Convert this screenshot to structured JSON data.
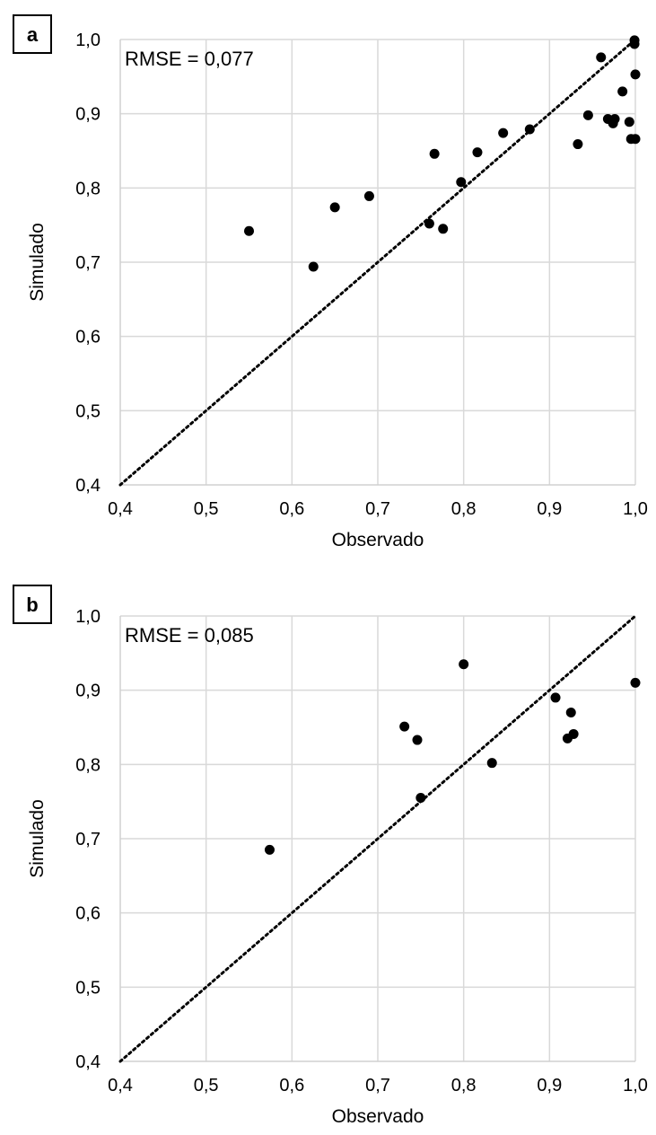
{
  "chart_data": [
    {
      "type": "scatter",
      "panel_label": "a",
      "annotation": "RMSE = 0,077",
      "xlabel": "Observado",
      "ylabel": "Simulado",
      "xlim": [
        0.4,
        1.0
      ],
      "ylim": [
        0.4,
        1.0
      ],
      "x_ticks": [
        "0,4",
        "0,5",
        "0,6",
        "0,7",
        "0,8",
        "0,9",
        "1,0"
      ],
      "y_ticks": [
        "0,4",
        "0,5",
        "0,6",
        "0,7",
        "0,8",
        "0,9",
        "1,0"
      ],
      "grid": true,
      "reference_line": "1:1",
      "points": [
        {
          "x": 0.55,
          "y": 0.742
        },
        {
          "x": 0.625,
          "y": 0.694
        },
        {
          "x": 0.65,
          "y": 0.774
        },
        {
          "x": 0.69,
          "y": 0.789
        },
        {
          "x": 0.76,
          "y": 0.752
        },
        {
          "x": 0.766,
          "y": 0.846
        },
        {
          "x": 0.776,
          "y": 0.745
        },
        {
          "x": 0.797,
          "y": 0.808
        },
        {
          "x": 0.816,
          "y": 0.848
        },
        {
          "x": 0.846,
          "y": 0.874
        },
        {
          "x": 0.877,
          "y": 0.879
        },
        {
          "x": 0.933,
          "y": 0.859
        },
        {
          "x": 0.945,
          "y": 0.898
        },
        {
          "x": 0.96,
          "y": 0.976
        },
        {
          "x": 0.968,
          "y": 0.893
        },
        {
          "x": 0.974,
          "y": 0.887
        },
        {
          "x": 0.976,
          "y": 0.893
        },
        {
          "x": 0.985,
          "y": 0.93
        },
        {
          "x": 0.993,
          "y": 0.889
        },
        {
          "x": 0.995,
          "y": 0.866
        },
        {
          "x": 0.999,
          "y": 0.999
        },
        {
          "x": 0.999,
          "y": 0.994
        },
        {
          "x": 1.0,
          "y": 0.953
        },
        {
          "x": 1.0,
          "y": 0.866
        }
      ]
    },
    {
      "type": "scatter",
      "panel_label": "b",
      "annotation": "RMSE = 0,085",
      "xlabel": "Observado",
      "ylabel": "Simulado",
      "xlim": [
        0.4,
        1.0
      ],
      "ylim": [
        0.4,
        1.0
      ],
      "x_ticks": [
        "0,4",
        "0,5",
        "0,6",
        "0,7",
        "0,8",
        "0,9",
        "1,0"
      ],
      "y_ticks": [
        "0,4",
        "0,5",
        "0,6",
        "0,7",
        "0,8",
        "0,9",
        "1,0"
      ],
      "grid": true,
      "reference_line": "1:1",
      "points": [
        {
          "x": 0.574,
          "y": 0.685
        },
        {
          "x": 0.731,
          "y": 0.851
        },
        {
          "x": 0.746,
          "y": 0.833
        },
        {
          "x": 0.75,
          "y": 0.755
        },
        {
          "x": 0.8,
          "y": 0.935
        },
        {
          "x": 0.833,
          "y": 0.802
        },
        {
          "x": 0.907,
          "y": 0.89
        },
        {
          "x": 0.921,
          "y": 0.835
        },
        {
          "x": 0.925,
          "y": 0.87
        },
        {
          "x": 0.928,
          "y": 0.841
        },
        {
          "x": 1.0,
          "y": 0.91
        }
      ]
    }
  ]
}
